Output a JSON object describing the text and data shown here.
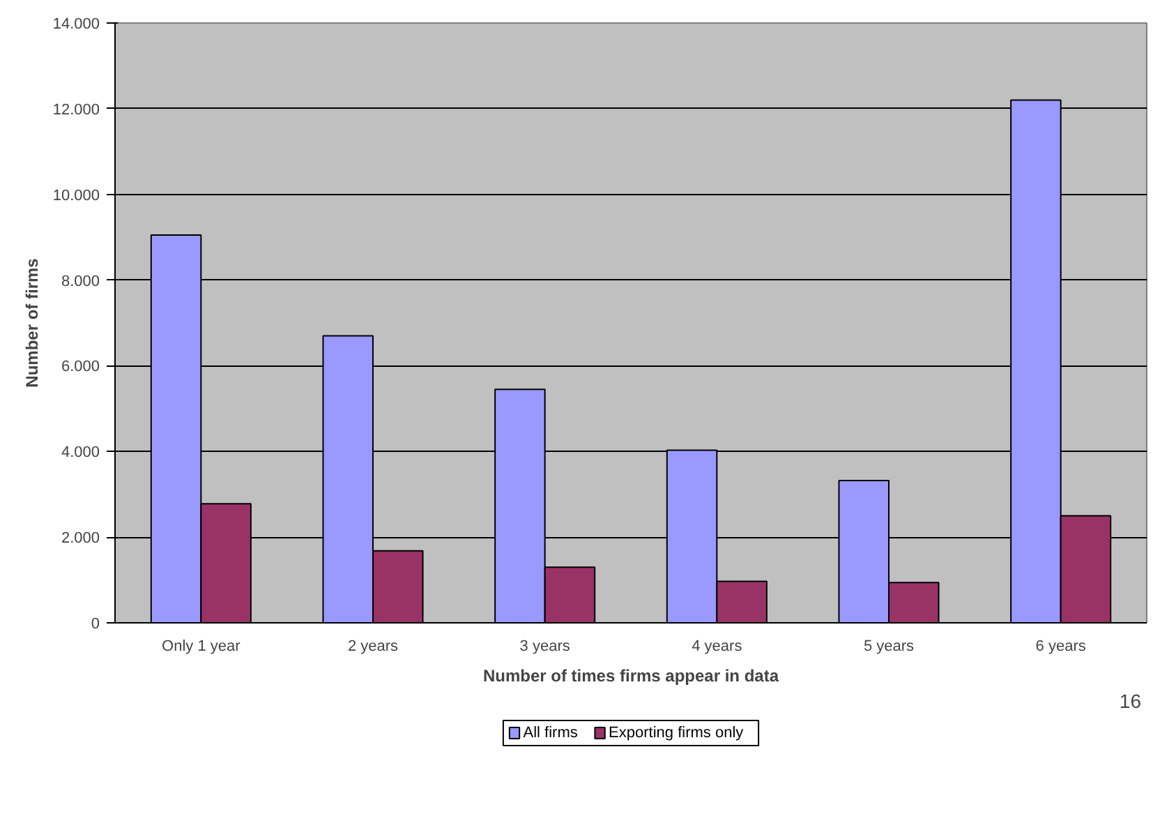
{
  "chart_data": {
    "type": "bar",
    "xlabel": "Number of times firms appear in data",
    "ylabel": "Number of firms",
    "categories": [
      "Only 1 year",
      "2 years",
      "3 years",
      "4 years",
      "5 years",
      "6 years"
    ],
    "series": [
      {
        "name": "All firms",
        "color": "#9999ff",
        "values": [
          9050,
          6700,
          5450,
          4030,
          3320,
          12200
        ]
      },
      {
        "name": "Exporting firms only",
        "color": "#993366",
        "values": [
          2780,
          1680,
          1300,
          970,
          940,
          2500
        ]
      }
    ],
    "ylim": [
      0,
      14000
    ],
    "yticks": [
      {
        "value": 0,
        "label": "0"
      },
      {
        "value": 2000,
        "label": "2.000"
      },
      {
        "value": 4000,
        "label": "4.000"
      },
      {
        "value": 6000,
        "label": "6.000"
      },
      {
        "value": 8000,
        "label": "8.000"
      },
      {
        "value": 10000,
        "label": "10.000"
      },
      {
        "value": 12000,
        "label": "12.000"
      },
      {
        "value": 14000,
        "label": "14.000"
      }
    ],
    "grid": "y",
    "legend": "bottom",
    "annotations": [
      "16"
    ]
  }
}
